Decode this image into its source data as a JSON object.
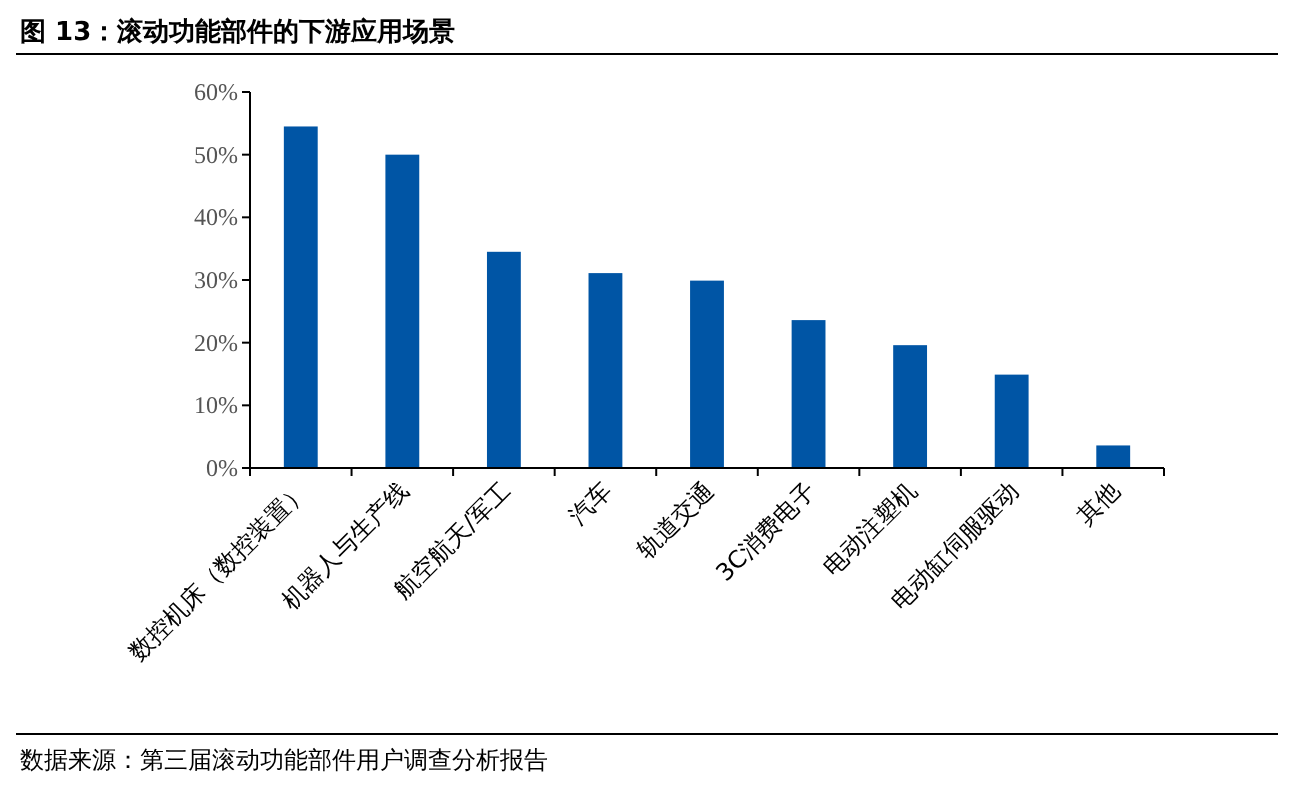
{
  "chart_data": {
    "type": "bar",
    "title": "图 13：滚动功能部件的下游应用场景",
    "categories": [
      "数控机床（数控装置）",
      "机器人与生产线",
      "航空航天/军工",
      "汽车",
      "轨道交通",
      "3C消费电子",
      "电动注塑机",
      "电动缸伺服驱动",
      "其他"
    ],
    "values": [
      54.5,
      50.0,
      34.5,
      31.1,
      29.9,
      23.6,
      19.6,
      14.9,
      3.6
    ],
    "color": "#0055a5",
    "ylim": [
      0,
      60
    ],
    "yticks": [
      {
        "value": 0,
        "label": "0%"
      },
      {
        "value": 10,
        "label": "10%"
      },
      {
        "value": 20,
        "label": "20%"
      },
      {
        "value": 30,
        "label": "30%"
      },
      {
        "value": 40,
        "label": "40%"
      },
      {
        "value": 50,
        "label": "50%"
      },
      {
        "value": 60,
        "label": "60%"
      }
    ],
    "annotations": [
      "数据来源：第三届滚动功能部件用户调查分析报告"
    ]
  }
}
